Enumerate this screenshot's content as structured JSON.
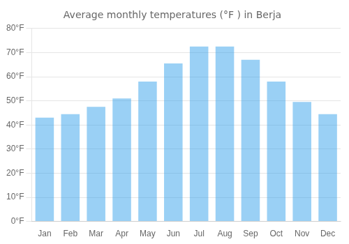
{
  "chart_data": {
    "type": "bar",
    "title": "Average monthly temperatures (°F ) in Berja",
    "categories": [
      "Jan",
      "Feb",
      "Mar",
      "Apr",
      "May",
      "Jun",
      "Jul",
      "Aug",
      "Sep",
      "Oct",
      "Nov",
      "Dec"
    ],
    "values": [
      43,
      44.5,
      47.5,
      51,
      58,
      65.5,
      72.5,
      72.5,
      67,
      58,
      49.5,
      44.5
    ],
    "ylim": [
      0,
      80
    ],
    "yticks": [
      {
        "value": 0,
        "label": "0°F"
      },
      {
        "value": 10,
        "label": "10°F"
      },
      {
        "value": 20,
        "label": "20°F"
      },
      {
        "value": 30,
        "label": "30°F"
      },
      {
        "value": 40,
        "label": "40°F"
      },
      {
        "value": 50,
        "label": "50°F"
      },
      {
        "value": 60,
        "label": "60°F"
      },
      {
        "value": 70,
        "label": "70°F"
      },
      {
        "value": 80,
        "label": "80°F"
      }
    ],
    "grid": true
  }
}
